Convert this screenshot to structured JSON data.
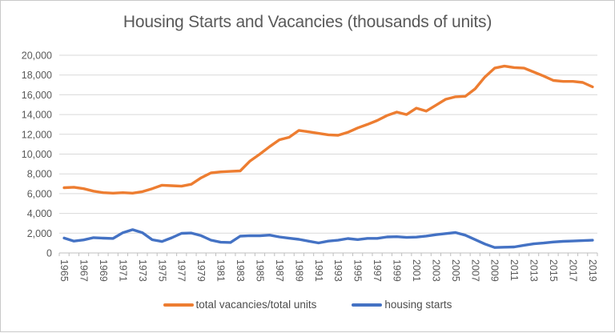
{
  "chart_data": {
    "type": "line",
    "title": "Housing Starts and Vacancies (thousands of units)",
    "x": [
      1965,
      1966,
      1967,
      1968,
      1969,
      1970,
      1971,
      1972,
      1973,
      1974,
      1975,
      1976,
      1977,
      1978,
      1979,
      1980,
      1981,
      1982,
      1983,
      1984,
      1985,
      1986,
      1987,
      1988,
      1989,
      1990,
      1991,
      1992,
      1993,
      1994,
      1995,
      1996,
      1997,
      1998,
      1999,
      2000,
      2001,
      2002,
      2003,
      2004,
      2005,
      2006,
      2007,
      2008,
      2009,
      2010,
      2011,
      2012,
      2013,
      2014,
      2015,
      2016,
      2017,
      2018,
      2019
    ],
    "x_tick_labels": [
      "1965",
      "1967",
      "1969",
      "1971",
      "1973",
      "1975",
      "1977",
      "1979",
      "1981",
      "1983",
      "1985",
      "1987",
      "1989",
      "1991",
      "1993",
      "1995",
      "1997",
      "1999",
      "2001",
      "2003",
      "2005",
      "2007",
      "2009",
      "2011",
      "2013",
      "2015",
      "2017",
      "2019"
    ],
    "x_label_interval": 2,
    "series": [
      {
        "name": "total vacancies/total units",
        "color": "#ED7D31",
        "values": [
          6600,
          6650,
          6500,
          6250,
          6100,
          6050,
          6100,
          6050,
          6200,
          6500,
          6850,
          6800,
          6750,
          6950,
          7600,
          8100,
          8200,
          8250,
          8300,
          9300,
          10000,
          10750,
          11450,
          11700,
          12400,
          12250,
          12100,
          11950,
          11900,
          12200,
          12650,
          13000,
          13400,
          13900,
          14250,
          14000,
          14650,
          14350,
          14950,
          15550,
          15800,
          15850,
          16600,
          17800,
          18700,
          18900,
          18750,
          18700,
          18300,
          17900,
          17450,
          17350,
          17350,
          17250,
          16800
        ]
      },
      {
        "name": "housing starts",
        "color": "#4472C4",
        "values": [
          1510,
          1196,
          1322,
          1545,
          1500,
          1469,
          2052,
          2356,
          2045,
          1338,
          1160,
          1538,
          1987,
          2020,
          1745,
          1292,
          1084,
          1062,
          1703,
          1750,
          1742,
          1805,
          1620,
          1488,
          1376,
          1193,
          1014,
          1200,
          1288,
          1457,
          1354,
          1477,
          1474,
          1617,
          1641,
          1569,
          1603,
          1705,
          1848,
          1956,
          2068,
          1801,
          1355,
          906,
          554,
          587,
          609,
          781,
          925,
          1003,
          1112,
          1174,
          1203,
          1250,
          1290
        ]
      }
    ],
    "ylim": [
      0,
      20000
    ],
    "y_tick_step": 2000,
    "y_tick_labels": [
      "0",
      "2,000",
      "4,000",
      "6,000",
      "8,000",
      "10,000",
      "12,000",
      "14,000",
      "16,000",
      "18,000",
      "20,000"
    ],
    "grid": true,
    "legend_position": "bottom",
    "text_color": "#595959",
    "gridline_color": "#D9D9D9",
    "axis_color": "#BFBFBF"
  }
}
